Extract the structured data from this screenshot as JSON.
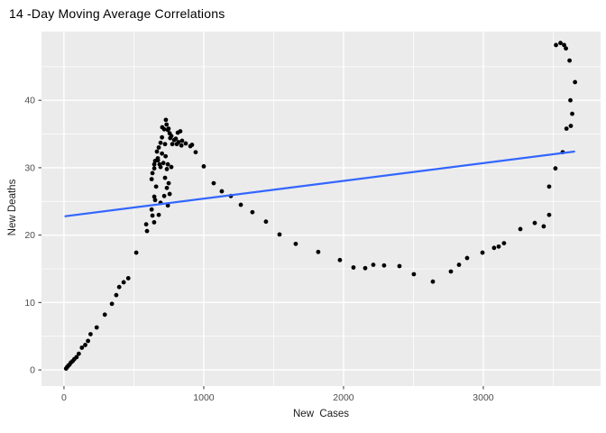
{
  "chart_data": {
    "type": "scatter",
    "title": "14 -Day Moving Average Correlations",
    "xlabel": "New  Cases",
    "ylabel": "New Deaths",
    "legend": "none",
    "grid": "white major+minor gridlines on gray panel",
    "xlim": [
      -161,
      3839
    ],
    "ylim": [
      -2.4,
      50.2
    ],
    "x_ticks": {
      "major": [
        0,
        1000,
        2000,
        3000
      ],
      "minor": [
        500,
        1500,
        2500,
        3500
      ],
      "labels": [
        "0",
        "1000",
        "2000",
        "3000"
      ]
    },
    "y_ticks": {
      "major": [
        0,
        10,
        20,
        30,
        40
      ],
      "minor": [
        5,
        15,
        25,
        35,
        45
      ],
      "labels": [
        "0",
        "10",
        "20",
        "30",
        "40"
      ]
    },
    "smooth_line": {
      "x1": 10,
      "y1": 22.8,
      "x2": 3650,
      "y2": 32.4
    },
    "points": [
      [
        15,
        0.2
      ],
      [
        22,
        0.4
      ],
      [
        30,
        0.6
      ],
      [
        40,
        0.8
      ],
      [
        50,
        1.1
      ],
      [
        62,
        1.3
      ],
      [
        74,
        1.6
      ],
      [
        90,
        1.9
      ],
      [
        106,
        2.4
      ],
      [
        128,
        3.3
      ],
      [
        152,
        3.7
      ],
      [
        172,
        4.3
      ],
      [
        190,
        5.3
      ],
      [
        234,
        6.3
      ],
      [
        292,
        8.2
      ],
      [
        343,
        9.8
      ],
      [
        374,
        11.1
      ],
      [
        395,
        12.3
      ],
      [
        427,
        13.0
      ],
      [
        460,
        13.6
      ],
      [
        517,
        17.4
      ],
      [
        588,
        21.6
      ],
      [
        594,
        20.6
      ],
      [
        633,
        22.9
      ],
      [
        645,
        21.9
      ],
      [
        627,
        23.8
      ],
      [
        678,
        23.0
      ],
      [
        691,
        24.8
      ],
      [
        743,
        24.4
      ],
      [
        646,
        25.7
      ],
      [
        652,
        25.2
      ],
      [
        717,
        25.8
      ],
      [
        756,
        26.1
      ],
      [
        736,
        27.0
      ],
      [
        659,
        27.2
      ],
      [
        749,
        27.7
      ],
      [
        723,
        28.5
      ],
      [
        627,
        28.3
      ],
      [
        633,
        29.2
      ],
      [
        646,
        29.9
      ],
      [
        736,
        29.8
      ],
      [
        691,
        30.1
      ],
      [
        768,
        30.1
      ],
      [
        646,
        30.5
      ],
      [
        684,
        30.5
      ],
      [
        743,
        30.5
      ],
      [
        711,
        30.7
      ],
      [
        652,
        31.0
      ],
      [
        672,
        31.1
      ],
      [
        671,
        31.4
      ],
      [
        727,
        31.7
      ],
      [
        701,
        32.1
      ],
      [
        665,
        32.4
      ],
      [
        678,
        33.0
      ],
      [
        723,
        33.5
      ],
      [
        691,
        33.7
      ],
      [
        701,
        34.5
      ],
      [
        703,
        36.0
      ],
      [
        717,
        35.7
      ],
      [
        729,
        37.1
      ],
      [
        734,
        36.4
      ],
      [
        743,
        35.6
      ],
      [
        748,
        35.8
      ],
      [
        756,
        35.1
      ],
      [
        760,
        34.4
      ],
      [
        768,
        34.7
      ],
      [
        775,
        33.5
      ],
      [
        788,
        34.1
      ],
      [
        800,
        34.3
      ],
      [
        807,
        33.5
      ],
      [
        814,
        35.2
      ],
      [
        819,
        33.8
      ],
      [
        832,
        35.4
      ],
      [
        840,
        33.3
      ],
      [
        845,
        34.0
      ],
      [
        871,
        33.6
      ],
      [
        904,
        33.2
      ],
      [
        916,
        33.4
      ],
      [
        942,
        32.3
      ],
      [
        1000,
        30.2
      ],
      [
        1071,
        27.7
      ],
      [
        1129,
        26.5
      ],
      [
        1194,
        25.8
      ],
      [
        1265,
        24.5
      ],
      [
        1348,
        23.4
      ],
      [
        1445,
        22.0
      ],
      [
        1542,
        20.1
      ],
      [
        1658,
        18.7
      ],
      [
        1819,
        17.5
      ],
      [
        1974,
        16.3
      ],
      [
        2071,
        15.2
      ],
      [
        2155,
        15.1
      ],
      [
        2213,
        15.6
      ],
      [
        2290,
        15.5
      ],
      [
        2400,
        15.4
      ],
      [
        2503,
        14.2
      ],
      [
        2639,
        13.1
      ],
      [
        2768,
        14.6
      ],
      [
        2826,
        15.6
      ],
      [
        2884,
        16.6
      ],
      [
        2994,
        17.4
      ],
      [
        3077,
        18.1
      ],
      [
        3110,
        18.3
      ],
      [
        3148,
        18.8
      ],
      [
        3265,
        20.9
      ],
      [
        3368,
        21.8
      ],
      [
        3432,
        21.3
      ],
      [
        3471,
        23.0
      ],
      [
        3471,
        27.2
      ],
      [
        3516,
        29.9
      ],
      [
        3568,
        32.3
      ],
      [
        3595,
        35.8
      ],
      [
        3626,
        36.2
      ],
      [
        3636,
        38.0
      ],
      [
        3623,
        40.0
      ],
      [
        3656,
        42.7
      ],
      [
        3617,
        45.9
      ],
      [
        3591,
        47.7
      ],
      [
        3578,
        48.2
      ],
      [
        3552,
        48.5
      ],
      [
        3520,
        48.2
      ]
    ],
    "colors": {
      "point": "#000000",
      "line": "#3366FF",
      "panel_bg": "#EBEBEB",
      "grid": "#FFFFFF",
      "tick_text": "#4D4D4D",
      "tick_mark": "#333333",
      "axis_title": "#1A1A1A",
      "title": "#000000",
      "figure_bg": "#FFFFFF"
    }
  }
}
